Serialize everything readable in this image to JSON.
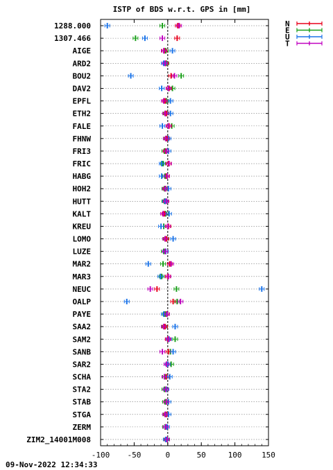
{
  "chart_data": {
    "type": "scatter",
    "title": "ISTP of BDS w.r.t. GPS in [mm]",
    "xlim": [
      -100,
      150
    ],
    "xticks": [
      -100,
      -50,
      0,
      50,
      100,
      150
    ],
    "timestamp": "09-Nov-2022 12:34:33",
    "grid": true,
    "legend_position": "top-right",
    "series": [
      {
        "name": "N",
        "color": "#e8001c"
      },
      {
        "name": "E",
        "color": "#1aa01a"
      },
      {
        "name": "U",
        "color": "#1a73e8"
      },
      {
        "name": "T",
        "color": "#c000c0"
      }
    ],
    "stations": [
      {
        "name": "1288.000",
        "N": 15,
        "E": -8,
        "U": -90,
        "T": 17
      },
      {
        "name": "1307.466",
        "N": 14,
        "E": -48,
        "U": -34,
        "T": -8
      },
      {
        "name": "AIGE",
        "N": -5,
        "E": -3,
        "U": 7,
        "T": -6
      },
      {
        "name": "ARD2",
        "N": -3,
        "E": -2,
        "U": -6,
        "T": -4
      },
      {
        "name": "BOU2",
        "N": 5,
        "E": 20,
        "U": -55,
        "T": 10
      },
      {
        "name": "DAV2",
        "N": 2,
        "E": 7,
        "U": -9,
        "T": 1
      },
      {
        "name": "EPFL",
        "N": -4,
        "E": -2,
        "U": 4,
        "T": -6
      },
      {
        "name": "ETH2",
        "N": -2,
        "E": -3,
        "U": 4,
        "T": -4
      },
      {
        "name": "FALE",
        "N": 2,
        "E": 6,
        "U": -8,
        "T": 1
      },
      {
        "name": "FHNW",
        "N": -1,
        "E": -2,
        "U": 1,
        "T": -3
      },
      {
        "name": "FRI3",
        "N": -3,
        "E": -5,
        "U": 1,
        "T": -2
      },
      {
        "name": "FRIC",
        "N": 1,
        "E": -7,
        "U": -9,
        "T": 2
      },
      {
        "name": "HABG",
        "N": -2,
        "E": -4,
        "U": -9,
        "T": -1
      },
      {
        "name": "HOH2",
        "N": -3,
        "E": -5,
        "U": 1,
        "T": -4
      },
      {
        "name": "HUTT",
        "N": -3,
        "E": -5,
        "U": -4,
        "T": -2
      },
      {
        "name": "KALT",
        "N": -5,
        "E": -3,
        "U": 2,
        "T": -7
      },
      {
        "name": "KREU",
        "N": 1,
        "E": -6,
        "U": -10,
        "T": 0
      },
      {
        "name": "LOMO",
        "N": -2,
        "E": -3,
        "U": 8,
        "T": -4
      },
      {
        "name": "LUZE",
        "N": -3,
        "E": -6,
        "U": -3,
        "T": -4
      },
      {
        "name": "MAR2",
        "N": 3,
        "E": -7,
        "U": -29,
        "T": 5
      },
      {
        "name": "MAR3",
        "N": 0,
        "E": -9,
        "U": -11,
        "T": 1
      },
      {
        "name": "NEUC",
        "N": -16,
        "E": 13,
        "U": 140,
        "T": -26
      },
      {
        "name": "OALP",
        "N": 8,
        "E": 14,
        "U": -61,
        "T": 19
      },
      {
        "name": "PAYE",
        "N": -2,
        "E": -4,
        "U": -6,
        "T": -1
      },
      {
        "name": "SAA2",
        "N": -4,
        "E": -5,
        "U": 11,
        "T": -6
      },
      {
        "name": "SAM2",
        "N": 0,
        "E": 11,
        "U": 2,
        "T": 1
      },
      {
        "name": "SANB",
        "N": 1,
        "E": 4,
        "U": 8,
        "T": -8
      },
      {
        "name": "SAR2",
        "N": 0,
        "E": 5,
        "U": 0,
        "T": -2
      },
      {
        "name": "SCHA",
        "N": -2,
        "E": -4,
        "U": 3,
        "T": -5
      },
      {
        "name": "STA2",
        "N": -3,
        "E": -5,
        "U": -2,
        "T": -3
      },
      {
        "name": "STAB",
        "N": -2,
        "E": -4,
        "U": 1,
        "T": -2
      },
      {
        "name": "STGA",
        "N": -2,
        "E": -3,
        "U": 1,
        "T": -4
      },
      {
        "name": "ZERM",
        "N": -3,
        "E": -4,
        "U": -1,
        "T": -3
      },
      {
        "name": "ZIM2_14001M008",
        "N": -1,
        "E": -2,
        "U": -3,
        "T": -1
      }
    ]
  }
}
